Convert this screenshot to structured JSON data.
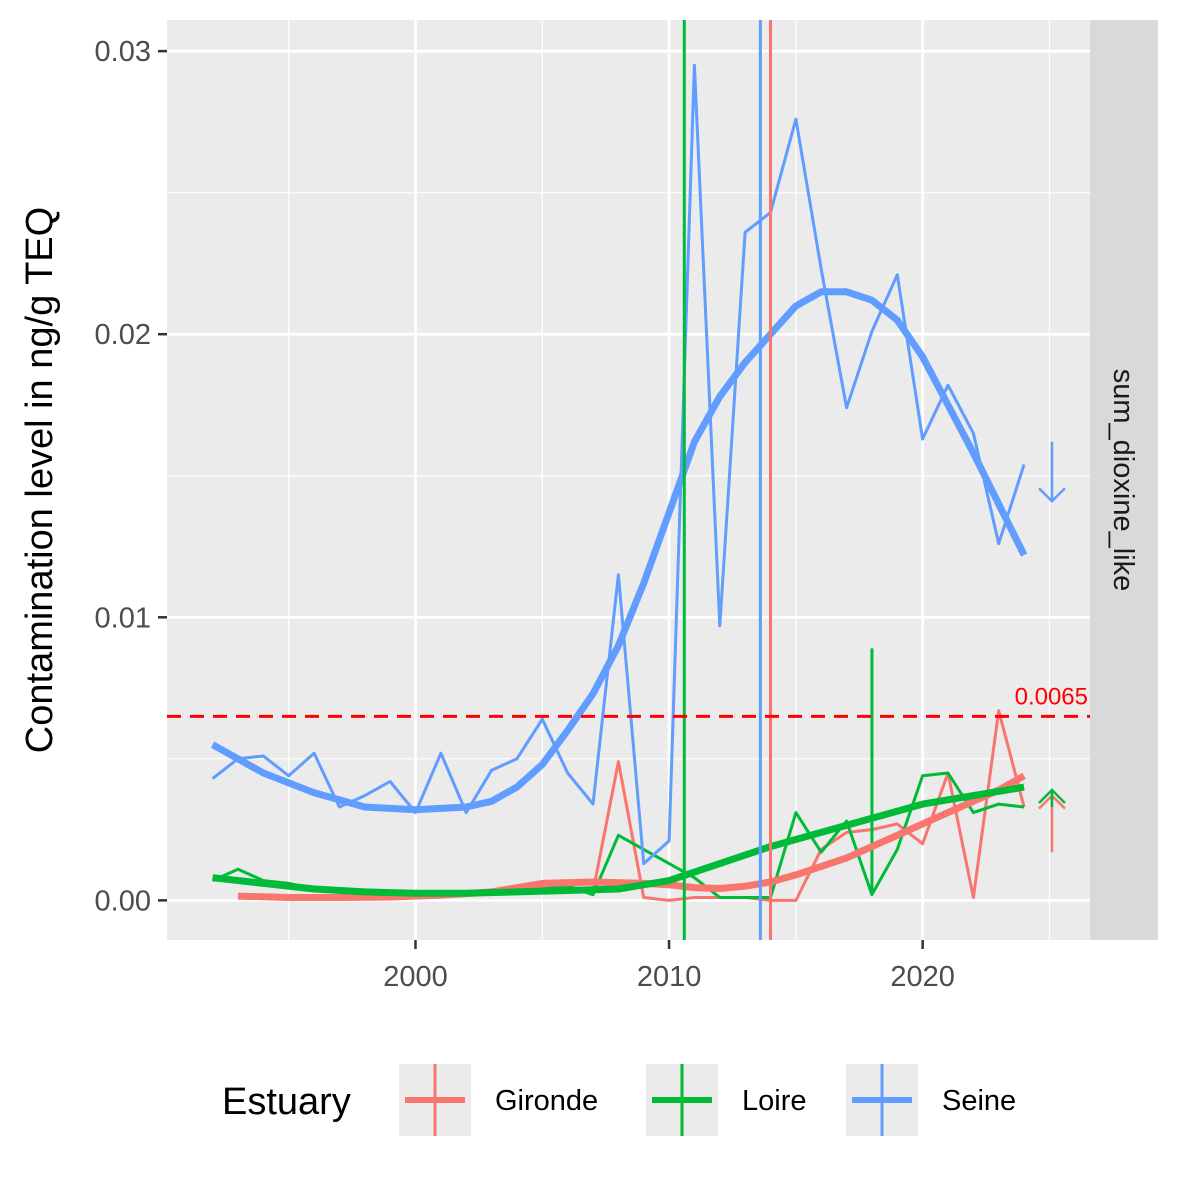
{
  "chart_data": {
    "type": "line",
    "facet_label": "sum_dioxine_like",
    "ylabel": "Contamination level in ng/g TEQ",
    "xlabel": "",
    "xlim": [
      1990.2,
      2026.6
    ],
    "ylim": [
      -0.0014,
      0.0311
    ],
    "x_ticks": [
      2000,
      2010,
      2020
    ],
    "y_ticks": [
      0.0,
      0.01,
      0.02,
      0.03
    ],
    "y_tick_labels": [
      "0.00",
      "0.01",
      "0.02",
      "0.03"
    ],
    "grid": true,
    "threshold": {
      "value": 0.0065,
      "label": "0.0065",
      "color": "#ff0000"
    },
    "legend": {
      "title": "Estuary",
      "position": "bottom",
      "entries": [
        "Gironde",
        "Loire",
        "Seine"
      ]
    },
    "series": [
      {
        "name": "Gironde",
        "color": "#F8766D",
        "x": [
          1993,
          1994,
          1995,
          1996,
          1997,
          1998,
          1999,
          2000,
          2001,
          2002,
          2003,
          2004,
          2005,
          2006,
          2007,
          2008,
          2009,
          2010,
          2011,
          2012,
          2013,
          2014,
          2015,
          2016,
          2017,
          2018,
          2019,
          2020,
          2021,
          2022,
          2023,
          2024
        ],
        "values": [
          0.00015,
          0.00012,
          0.0001,
          0.0001,
          0.0001,
          0.00012,
          0.00015,
          0.0002,
          0.0002,
          0.00025,
          0.0003,
          0.0004,
          0.0005,
          0.0005,
          0.0003,
          0.0049,
          0.0001,
          0.0,
          0.0001,
          0.0001,
          0.0001,
          0.0,
          0.0,
          0.0018,
          0.0024,
          0.0025,
          0.0027,
          0.002,
          0.0045,
          0.0001,
          0.0067,
          0.0033
        ],
        "smooth_x": [
          1993,
          1995,
          1997,
          1999,
          2001,
          2003,
          2005,
          2007,
          2009,
          2010,
          2011,
          2012,
          2013,
          2014,
          2015,
          2016,
          2017,
          2018,
          2019,
          2020,
          2021,
          2022,
          2023,
          2024
        ],
        "smooth_values": [
          0.00015,
          0.0001,
          0.0001,
          0.00012,
          0.00018,
          0.0003,
          0.0006,
          0.00065,
          0.0006,
          0.00055,
          0.00045,
          0.00042,
          0.0005,
          0.00065,
          0.0009,
          0.0012,
          0.0015,
          0.0019,
          0.0023,
          0.0027,
          0.0031,
          0.0035,
          0.0039,
          0.0044
        ],
        "vline_x": 2014.0,
        "trend_arrow": "up"
      },
      {
        "name": "Loire",
        "color": "#00BA38",
        "x": [
          1992,
          1993,
          1994,
          1995,
          1996,
          1997,
          1998,
          1999,
          2000,
          2001,
          2002,
          2003,
          2004,
          2005,
          2006,
          2007,
          2008,
          2009,
          2010,
          2011,
          2012,
          2013,
          2014,
          2015,
          2016,
          2017,
          2018,
          2019,
          2020,
          2021,
          2022,
          2023,
          2024
        ],
        "values": [
          0.0007,
          0.0011,
          0.0007,
          0.0006,
          0.0004,
          0.0003,
          0.0003,
          0.0003,
          0.0003,
          0.0003,
          0.0003,
          0.0003,
          0.0003,
          0.0004,
          0.0005,
          0.0002,
          0.0023,
          0.0018,
          0.0013,
          0.0008,
          0.0001,
          0.0001,
          0.0001,
          0.0031,
          0.0017,
          0.0028,
          0.0002,
          0.0018,
          0.0044,
          0.0045,
          0.0031,
          0.0034,
          0.0033
        ],
        "smooth_x": [
          1992,
          1994,
          1996,
          1998,
          2000,
          2002,
          2004,
          2006,
          2008,
          2010,
          2012,
          2014,
          2016,
          2018,
          2020,
          2022,
          2024
        ],
        "smooth_values": [
          0.0008,
          0.0006,
          0.0004,
          0.0003,
          0.00025,
          0.00025,
          0.0003,
          0.00035,
          0.0004,
          0.0007,
          0.0013,
          0.0019,
          0.0024,
          0.0029,
          0.0034,
          0.0037,
          0.004
        ],
        "spike": {
          "x": 2018,
          "value": 0.0089
        },
        "vline_x": 2010.6,
        "trend_arrow": "up"
      },
      {
        "name": "Seine",
        "color": "#619CFF",
        "x": [
          1992,
          1993,
          1994,
          1995,
          1996,
          1997,
          1998,
          1999,
          2000,
          2001,
          2002,
          2003,
          2004,
          2005,
          2006,
          2007,
          2008,
          2009,
          2010,
          2011,
          2012,
          2013,
          2014,
          2015,
          2016,
          2017,
          2018,
          2019,
          2020,
          2021,
          2022,
          2023,
          2024
        ],
        "values": [
          0.0043,
          0.005,
          0.0051,
          0.0044,
          0.0052,
          0.0033,
          0.0037,
          0.0042,
          0.0031,
          0.0052,
          0.0031,
          0.0046,
          0.005,
          0.0064,
          0.0045,
          0.0034,
          0.0115,
          0.0013,
          0.0021,
          0.0295,
          0.0097,
          0.0236,
          0.0243,
          0.0276,
          0.0223,
          0.0174,
          0.0201,
          0.0221,
          0.0163,
          0.0182,
          0.0165,
          0.0126,
          0.0154
        ],
        "smooth_x": [
          1992,
          1994,
          1996,
          1998,
          2000,
          2002,
          2003,
          2004,
          2005,
          2006,
          2007,
          2008,
          2009,
          2010,
          2011,
          2012,
          2013,
          2014,
          2015,
          2016,
          2017,
          2018,
          2019,
          2020,
          2021,
          2022,
          2023,
          2024
        ],
        "smooth_values": [
          0.0055,
          0.0045,
          0.0038,
          0.0033,
          0.0032,
          0.0033,
          0.0035,
          0.004,
          0.0048,
          0.006,
          0.0073,
          0.009,
          0.0112,
          0.0137,
          0.0162,
          0.0178,
          0.019,
          0.02,
          0.021,
          0.0215,
          0.0215,
          0.0212,
          0.0205,
          0.0192,
          0.0175,
          0.0158,
          0.014,
          0.0122
        ],
        "vline_x": 2013.6,
        "trend_arrow": "down"
      }
    ]
  }
}
